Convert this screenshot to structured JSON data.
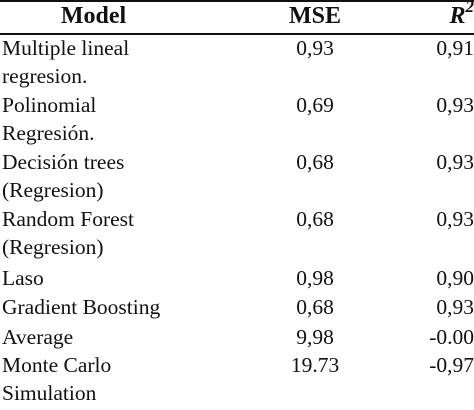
{
  "table": {
    "headers": {
      "model": "Model",
      "mse": "MSE",
      "r2_letter": "R",
      "r2_sup": "2"
    },
    "rows": [
      {
        "model_lines": [
          "Multiple lineal",
          "regresion."
        ],
        "mse": "0,93",
        "r2": "0,91"
      },
      {
        "model_lines": [
          "Polinomial",
          "Regresión."
        ],
        "mse": "0,69",
        "r2": "0,93"
      },
      {
        "model_lines": [
          "Decisión trees",
          "(Regresion)"
        ],
        "mse": "0,68",
        "r2": "0,93"
      },
      {
        "model_lines": [
          "Random Forest",
          "(Regresion)"
        ],
        "mse": "0,68",
        "r2": "0,93"
      },
      {
        "model_lines": [
          "Laso"
        ],
        "mse": "0,98",
        "r2": "0,90"
      },
      {
        "model_lines": [
          "Gradient Boosting"
        ],
        "mse": "0,68",
        "r2": "0,93"
      },
      {
        "model_lines": [
          "Average"
        ],
        "mse": "9,98",
        "r2": "-0.00"
      },
      {
        "model_lines": [
          "Monte Carlo",
          "Simulation"
        ],
        "mse": "19.73",
        "r2": "-0,97"
      }
    ]
  }
}
